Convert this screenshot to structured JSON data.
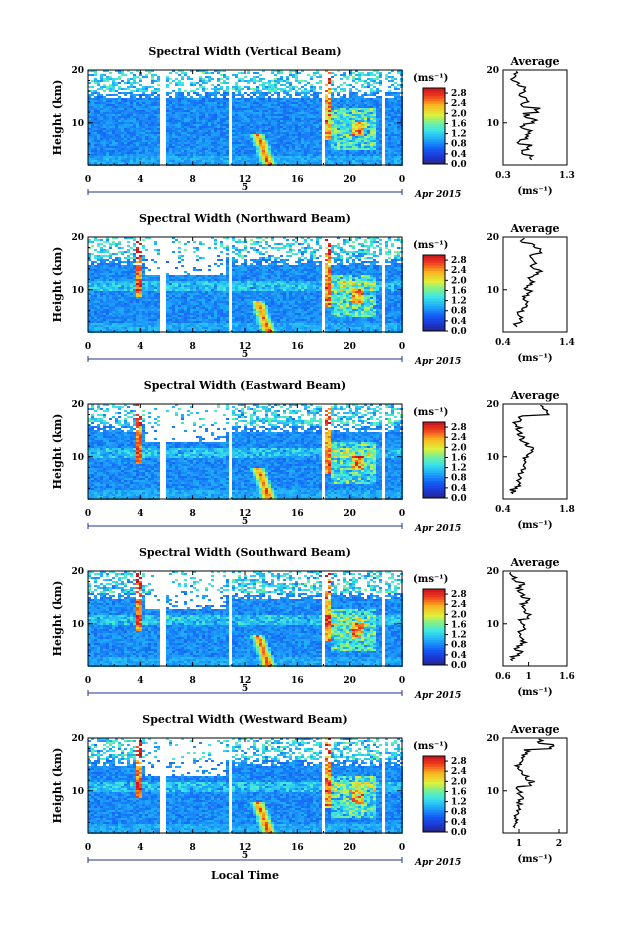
{
  "figure": {
    "date_label": "Apr 2015",
    "day_label": "5",
    "xlabel": "Local Time",
    "ylabel": "Height (km)",
    "colorbar_unit": "(ms⁻¹)",
    "avg_title": "Average",
    "avg_xlabel": "(ms⁻¹)"
  },
  "chart_data": [
    {
      "type": "heatmap",
      "title": "Spectral Width (Vertical Beam)",
      "x_ticks": [
        "0",
        "4",
        "8",
        "12",
        "16",
        "20",
        "0"
      ],
      "xlim": [
        0,
        24
      ],
      "y_ticks": [
        "20",
        "10"
      ],
      "ylim": [
        2,
        20
      ],
      "colorbar_ticks": [
        "2.8",
        "2.4",
        "2.0",
        "1.6",
        "1.2",
        "0.8",
        "0.4",
        "0.0"
      ],
      "colorbar_range": [
        0,
        3.0
      ],
      "profile": {
        "title": "Average",
        "xlim": [
          0.3,
          1.3
        ],
        "x_ticks": [
          "0.3",
          "1.3"
        ],
        "y_ticks": [
          "20",
          "10"
        ],
        "heights": [
          3,
          4,
          5,
          6,
          7,
          8,
          9,
          10,
          11,
          12,
          13,
          14,
          15,
          16,
          17,
          18,
          19
        ],
        "values": [
          0.75,
          0.62,
          0.7,
          0.55,
          0.68,
          0.72,
          0.6,
          0.78,
          0.66,
          0.85,
          0.62,
          0.7,
          0.58,
          0.65,
          0.55,
          0.45,
          0.5
        ]
      }
    },
    {
      "type": "heatmap",
      "title": "Spectral Width (Northward Beam)",
      "x_ticks": [
        "0",
        "4",
        "8",
        "12",
        "16",
        "20",
        "0"
      ],
      "xlim": [
        0,
        24
      ],
      "y_ticks": [
        "20",
        "10"
      ],
      "ylim": [
        2,
        20
      ],
      "colorbar_ticks": [
        "2.8",
        "2.4",
        "2.0",
        "1.6",
        "1.2",
        "0.8",
        "0.4",
        "0.0"
      ],
      "colorbar_range": [
        0,
        3.0
      ],
      "profile": {
        "title": "Average",
        "xlim": [
          0.4,
          1.4
        ],
        "x_ticks": [
          "0.4",
          "1.4"
        ],
        "y_ticks": [
          "20",
          "10"
        ],
        "heights": [
          3,
          4,
          5,
          6,
          7,
          8,
          9,
          10,
          11,
          12,
          13,
          14,
          15,
          16,
          17,
          18,
          19
        ],
        "values": [
          0.62,
          0.7,
          0.66,
          0.72,
          0.78,
          0.74,
          0.8,
          0.76,
          0.85,
          0.82,
          0.95,
          0.88,
          0.92,
          0.85,
          1.0,
          0.9,
          0.7
        ]
      }
    },
    {
      "type": "heatmap",
      "title": "Spectral Width (Eastward Beam)",
      "x_ticks": [
        "0",
        "4",
        "8",
        "12",
        "16",
        "20",
        "0"
      ],
      "xlim": [
        0,
        24
      ],
      "y_ticks": [
        "20",
        "10"
      ],
      "ylim": [
        2,
        20
      ],
      "colorbar_ticks": [
        "2.8",
        "2.4",
        "2.0",
        "1.6",
        "1.2",
        "0.8",
        "0.4",
        "0.0"
      ],
      "colorbar_range": [
        0,
        3.0
      ],
      "profile": {
        "title": "Average",
        "xlim": [
          0.4,
          1.8
        ],
        "x_ticks": [
          "0.4",
          "1.8"
        ],
        "y_ticks": [
          "20",
          "10"
        ],
        "heights": [
          3,
          4,
          5,
          6,
          7,
          8,
          9,
          10,
          11,
          12,
          13,
          14,
          15,
          16,
          17,
          18,
          19
        ],
        "values": [
          0.62,
          0.7,
          0.78,
          0.8,
          0.84,
          0.88,
          0.9,
          0.95,
          1.05,
          0.92,
          0.8,
          0.75,
          0.72,
          0.7,
          0.8,
          1.4,
          1.3
        ]
      }
    },
    {
      "type": "heatmap",
      "title": "Spectral Width (Southward Beam)",
      "x_ticks": [
        "0",
        "4",
        "8",
        "12",
        "16",
        "20",
        "0"
      ],
      "xlim": [
        0,
        24
      ],
      "y_ticks": [
        "20",
        "10"
      ],
      "ylim": [
        2,
        20
      ],
      "colorbar_ticks": [
        "2.8",
        "2.4",
        "2.0",
        "1.6",
        "1.2",
        "0.8",
        "0.4",
        "0.0"
      ],
      "colorbar_range": [
        0,
        3.0
      ],
      "profile": {
        "title": "Average",
        "xlim": [
          0.6,
          1.6
        ],
        "x_ticks": [
          "0.6",
          "1",
          "1.6"
        ],
        "y_ticks": [
          "20",
          "10"
        ],
        "heights": [
          3,
          4,
          5,
          6,
          7,
          8,
          9,
          10,
          11,
          12,
          13,
          14,
          15,
          16,
          17,
          18,
          19
        ],
        "values": [
          0.75,
          0.85,
          0.8,
          0.9,
          0.92,
          0.88,
          0.95,
          0.9,
          1.0,
          0.95,
          0.92,
          0.98,
          0.9,
          0.85,
          0.88,
          0.8,
          0.75
        ]
      }
    },
    {
      "type": "heatmap",
      "title": "Spectral Width (Westward Beam)",
      "x_ticks": [
        "0",
        "4",
        "8",
        "12",
        "16",
        "20",
        "0"
      ],
      "xlim": [
        0,
        24
      ],
      "y_ticks": [
        "20",
        "10"
      ],
      "ylim": [
        2,
        20
      ],
      "colorbar_ticks": [
        "2.8",
        "2.4",
        "2.0",
        "1.6",
        "1.2",
        "0.8",
        "0.4",
        "0.0"
      ],
      "colorbar_range": [
        0,
        3.0
      ],
      "profile": {
        "title": "Average",
        "xlim": [
          0.6,
          2.2
        ],
        "x_ticks": [
          "1",
          "2"
        ],
        "y_ticks": [
          "20",
          "10"
        ],
        "heights": [
          3,
          4,
          5,
          6,
          7,
          8,
          9,
          10,
          11,
          12,
          13,
          14,
          15,
          16,
          17,
          18,
          19
        ],
        "values": [
          0.9,
          0.95,
          0.92,
          0.98,
          1.0,
          1.02,
          1.05,
          1.0,
          1.3,
          1.2,
          1.1,
          1.0,
          1.05,
          1.1,
          1.2,
          1.8,
          1.5
        ]
      }
    }
  ]
}
